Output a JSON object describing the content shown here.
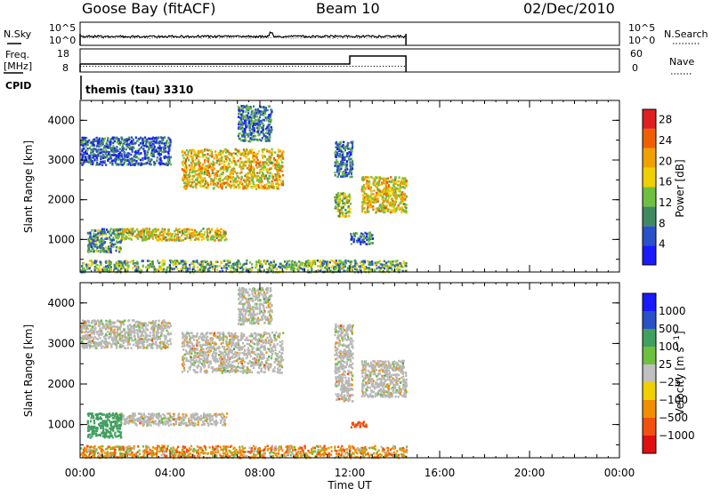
{
  "header": {
    "station": "Goose Bay (fitACF)",
    "beam": "Beam 10",
    "date": "02/Dec/2010"
  },
  "sky_panel": {
    "left_label": "N.Sky",
    "right_label": "N.Search",
    "left_ticks": [
      "10^5",
      "10^0"
    ],
    "right_ticks": [
      "10^5",
      "10^0"
    ]
  },
  "freq_panel": {
    "left_label_line1": "Freq.",
    "left_label_line2": "[MHz]",
    "right_label": "Nave",
    "left_ticks": [
      "18",
      "8"
    ],
    "right_ticks": [
      "60",
      "0"
    ]
  },
  "cpid": {
    "label": "CPID",
    "program": "themis (tau) 3310"
  },
  "x_axis": {
    "label": "Time UT",
    "ticks": [
      "00:00",
      "04:00",
      "08:00",
      "12:00",
      "16:00",
      "20:00",
      "00:00"
    ]
  },
  "colors": {
    "power": [
      "#1a1aff",
      "#2a52c8",
      "#3f8a60",
      "#70c040",
      "#f0d000",
      "#f0a000",
      "#f06000",
      "#e02020"
    ],
    "velocity": [
      "#e01010",
      "#f05010",
      "#f09000",
      "#f0d000",
      "#c0c0c0",
      "#70c040",
      "#40a060",
      "#2a52c8",
      "#1a1aff"
    ],
    "ground_scatter": "#b8b8b8"
  },
  "chart_data": [
    {
      "type": "heatmap",
      "title": "",
      "xlabel": "Time UT",
      "ylabel": "Slant Range [km]",
      "xlim": [
        "00:00",
        "24:00"
      ],
      "ylim": [
        180,
        4500
      ],
      "yticks": [
        "1000",
        "2000",
        "3000",
        "4000"
      ],
      "colorbar": {
        "label": "Power [dB]",
        "ticks": [
          "4",
          "8",
          "12",
          "16",
          "20",
          "24",
          "28"
        ],
        "range": [
          0,
          30
        ]
      },
      "regions": [
        {
          "t_start": 0.0,
          "t_end": 14.5,
          "r_start": 200,
          "r_end": 500,
          "level": 12
        },
        {
          "t_start": 4.5,
          "t_end": 9.0,
          "r_start": 2300,
          "r_end": 3300,
          "level": 18
        },
        {
          "t_start": 1.5,
          "t_end": 6.5,
          "r_start": 1000,
          "r_end": 1300,
          "level": 17
        },
        {
          "t_start": 0.3,
          "t_end": 1.8,
          "r_start": 700,
          "r_end": 1300,
          "level": 10
        },
        {
          "t_start": 0.0,
          "t_end": 4.0,
          "r_start": 2900,
          "r_end": 3600,
          "level": 6
        },
        {
          "t_start": 7.0,
          "t_end": 8.5,
          "r_start": 3500,
          "r_end": 4400,
          "level": 8
        },
        {
          "t_start": 11.3,
          "t_end": 12.0,
          "r_start": 1600,
          "r_end": 2200,
          "level": 14
        },
        {
          "t_start": 11.3,
          "t_end": 12.1,
          "r_start": 2600,
          "r_end": 3500,
          "level": 8
        },
        {
          "t_start": 12.5,
          "t_end": 14.5,
          "r_start": 1700,
          "r_end": 2600,
          "level": 18
        },
        {
          "t_start": 12.0,
          "t_end": 13.0,
          "r_start": 900,
          "r_end": 1200,
          "level": 8
        }
      ]
    },
    {
      "type": "heatmap",
      "title": "",
      "xlabel": "Time UT",
      "ylabel": "Slant Range [km]",
      "xlim": [
        "00:00",
        "24:00"
      ],
      "ylim": [
        180,
        4500
      ],
      "yticks": [
        "1000",
        "2000",
        "3000",
        "4000"
      ],
      "colorbar": {
        "label": "Velocity [m s^-1]",
        "ticks": [
          "1000",
          "500",
          "100",
          "25",
          "-25",
          "-100",
          "-500",
          "-1000"
        ]
      },
      "regions": [
        {
          "t_start": 0.0,
          "t_end": 14.5,
          "r_start": 200,
          "r_end": 500,
          "velocity": -80
        },
        {
          "t_start": 4.5,
          "t_end": 9.0,
          "r_start": 2300,
          "r_end": 3300,
          "velocity": 0
        },
        {
          "t_start": 1.5,
          "t_end": 6.5,
          "r_start": 1000,
          "r_end": 1300,
          "velocity": 0
        },
        {
          "t_start": 0.3,
          "t_end": 1.8,
          "r_start": 700,
          "r_end": 1300,
          "velocity": 300
        },
        {
          "t_start": 0.0,
          "t_end": 4.0,
          "r_start": 2900,
          "r_end": 3600,
          "velocity": 0
        },
        {
          "t_start": 7.0,
          "t_end": 8.5,
          "r_start": 3500,
          "r_end": 4400,
          "velocity": 0
        },
        {
          "t_start": 11.3,
          "t_end": 12.1,
          "r_start": 1600,
          "r_end": 3500,
          "velocity": 0
        },
        {
          "t_start": 12.5,
          "t_end": 14.5,
          "r_start": 1700,
          "r_end": 2600,
          "velocity": 0
        },
        {
          "t_start": 12.0,
          "t_end": 12.7,
          "r_start": 950,
          "r_end": 1100,
          "velocity": -200
        }
      ]
    }
  ]
}
